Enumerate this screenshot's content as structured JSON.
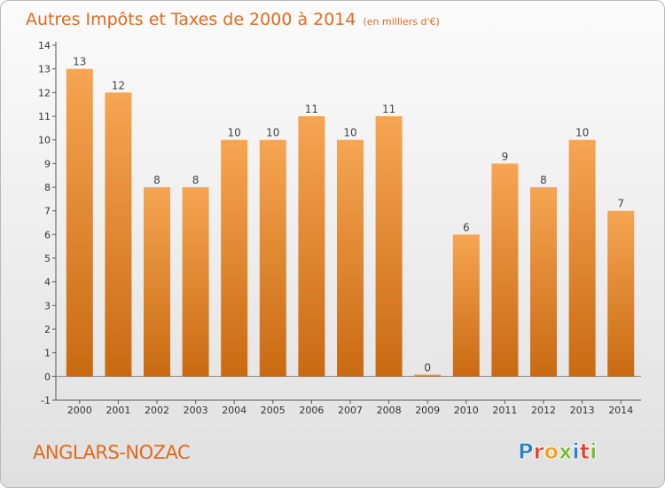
{
  "title": "Autres Impôts et Taxes de 2000 à 2014",
  "subtitle": "(en milliers d'€)",
  "commune": "ANGLARS-NOZAC",
  "brand": {
    "letters": [
      "P",
      "r",
      "o",
      "x",
      "i",
      "t",
      "i"
    ],
    "colors": [
      "#2c7fc4",
      "#e3402f",
      "#f0a020",
      "#7bb731",
      "#2c7fc4",
      "#e3402f",
      "#7bb731"
    ]
  },
  "colors": {
    "bar_top": "#f6a552",
    "bar_bottom": "#c96a12",
    "accent": "#e06a1e"
  },
  "chart_data": {
    "type": "bar",
    "categories": [
      "2000",
      "2001",
      "2002",
      "2003",
      "2004",
      "2005",
      "2006",
      "2007",
      "2008",
      "2009",
      "2010",
      "2011",
      "2012",
      "2013",
      "2014"
    ],
    "values": [
      13,
      12,
      8,
      8,
      10,
      10,
      11,
      10,
      11,
      0,
      6,
      9,
      8,
      10,
      7
    ],
    "title": "Autres Impôts et Taxes de 2000 à 2014",
    "ylim": [
      -1,
      14
    ],
    "yticks": [
      "-1",
      "0",
      "1",
      "2",
      "3",
      "4",
      "5",
      "6",
      "7",
      "8",
      "9",
      "10",
      "11",
      "12",
      "13",
      "14"
    ],
    "grid": false,
    "legend": "none"
  }
}
